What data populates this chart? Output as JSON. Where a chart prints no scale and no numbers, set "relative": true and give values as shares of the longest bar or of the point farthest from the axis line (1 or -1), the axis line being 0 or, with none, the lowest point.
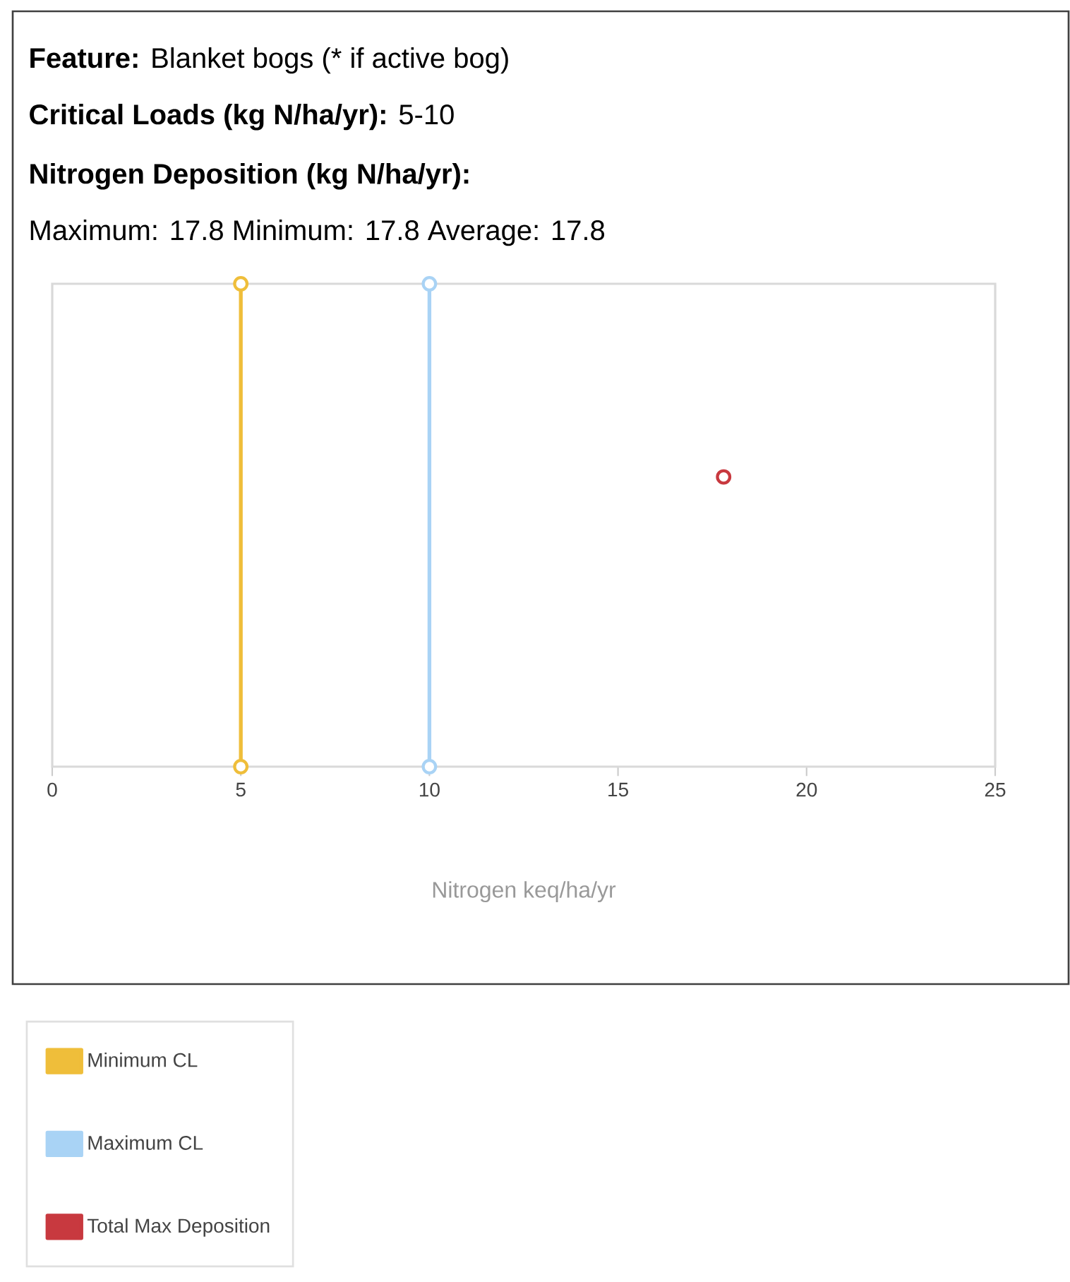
{
  "chart_data": {
    "type": "line",
    "title": "**Feature:** Blanket bogs (* if active bog)",
    "subtitle": "**Critical Loads (kg N/ha/yr):** 5-10",
    "annotations": [
      "Nitrogen Deposition (kg N/ha/yr):",
      "Maximum: 17.8 Minimum: 17.8 Average: 17.8"
    ],
    "xlabel": "Nitrogen keq/ha/yr",
    "xlim": [
      0,
      25
    ],
    "xticks": [
      0,
      5,
      10,
      15,
      20,
      25
    ],
    "relative": true,
    "tick_labels": "x",
    "grid": false,
    "legend": "bottom left",
    "marker": "circle",
    "series": [
      {
        "name": "Minimum CL",
        "color": "#efbe3a",
        "type": "line",
        "x": [
          5,
          5
        ],
        "values": [
          0,
          1
        ]
      },
      {
        "name": "Maximum CL",
        "color": "#a9d3f5",
        "type": "line",
        "x": [
          10,
          10
        ],
        "values": [
          0,
          1
        ]
      },
      {
        "name": "Total Max Deposition",
        "color": "#c8393f",
        "type": "scatter",
        "x": [
          17.8
        ],
        "values": [
          0.6
        ]
      }
    ]
  }
}
